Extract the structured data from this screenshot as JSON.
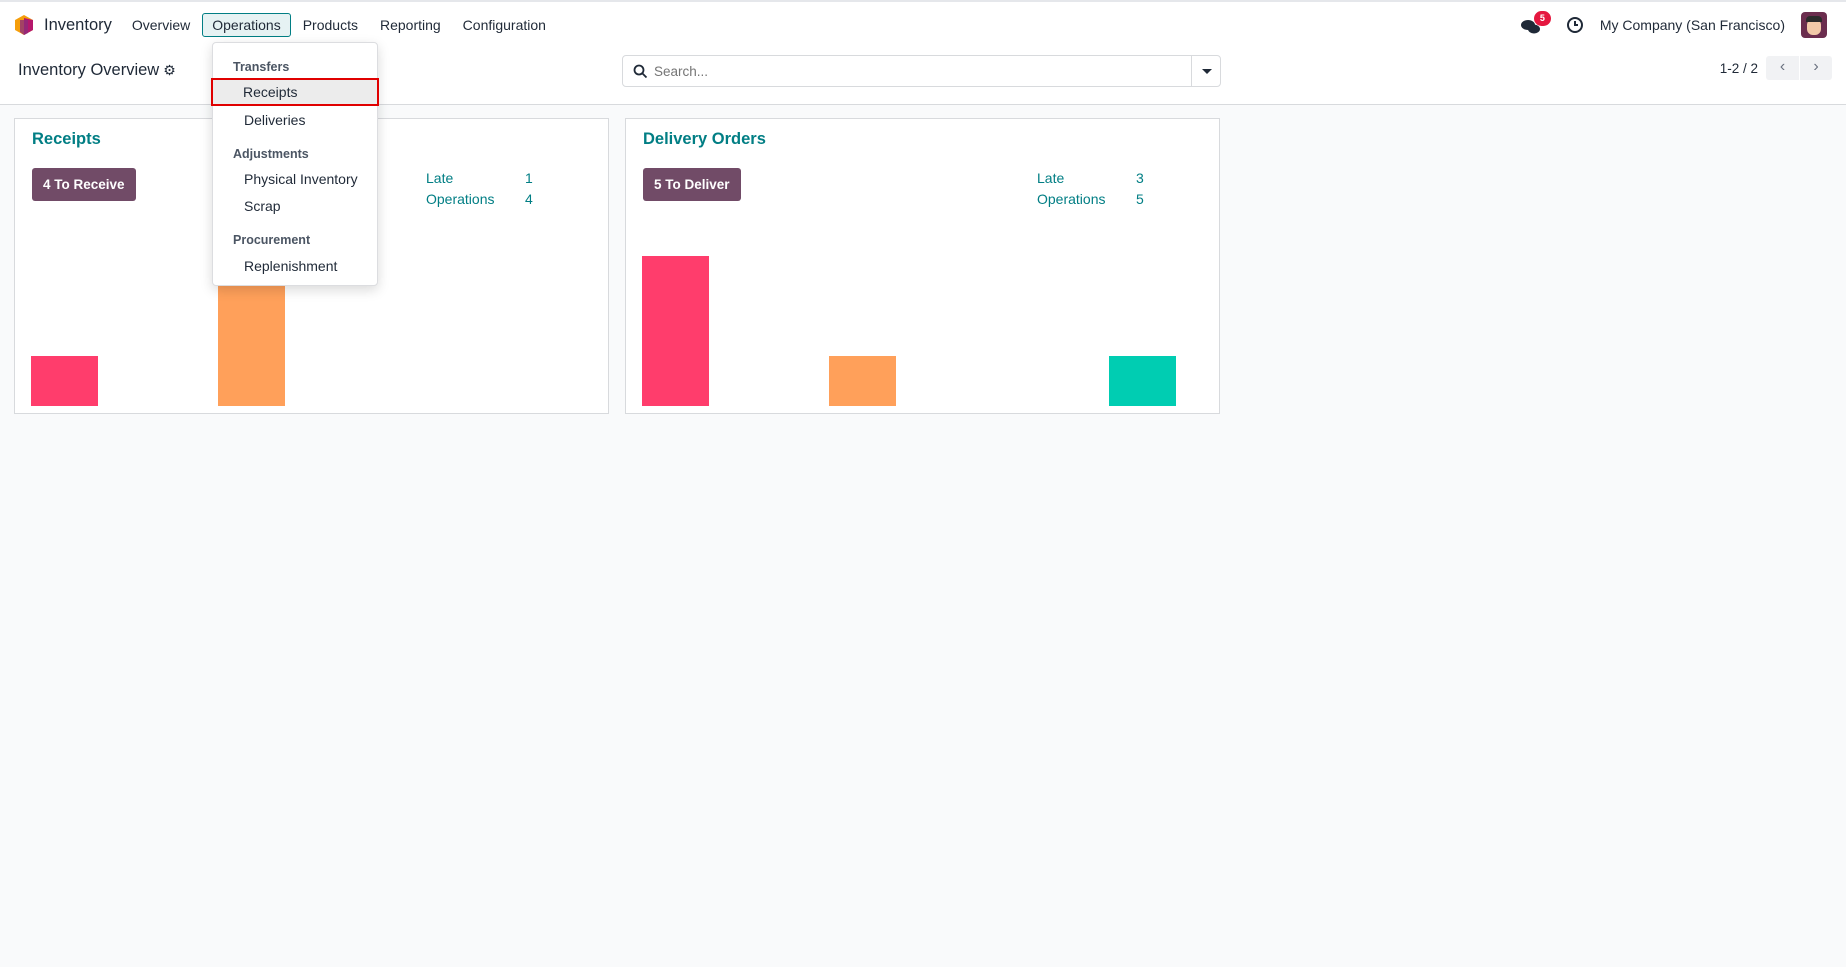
{
  "navbar": {
    "app_name": "Inventory",
    "menus": [
      "Overview",
      "Operations",
      "Products",
      "Reporting",
      "Configuration"
    ],
    "active_menu": "Operations",
    "messages_badge": "5",
    "company": "My Company (San Francisco)"
  },
  "control_panel": {
    "title": "Inventory Overview",
    "search_placeholder": "Search...",
    "pager": "1-2 / 2"
  },
  "operations_menu": {
    "sections": [
      {
        "header": "Transfers",
        "items": [
          "Receipts",
          "Deliveries"
        ]
      },
      {
        "header": "Adjustments",
        "items": [
          "Physical Inventory",
          "Scrap"
        ]
      },
      {
        "header": "Procurement",
        "items": [
          "Replenishment"
        ]
      }
    ],
    "highlighted_item": "Receipts"
  },
  "cards": [
    {
      "title": "Receipts",
      "button": "4 To Receive",
      "late_label": "Late",
      "late_value": "1",
      "ops_label": "Operations",
      "ops_value": "4"
    },
    {
      "title": "Delivery Orders",
      "button": "5 To Deliver",
      "late_label": "Late",
      "late_value": "3",
      "ops_label": "Operations",
      "ops_value": "5"
    }
  ],
  "chart_data": [
    {
      "type": "bar",
      "values": [
        1,
        0,
        3,
        0,
        0,
        0
      ],
      "colors": [
        "#ff3d6c",
        "#ff3d6c",
        "#ffa05a",
        "#ffa05a",
        "#00cdb2",
        "#00cdb2"
      ]
    },
    {
      "type": "bar",
      "values": [
        3,
        0,
        1,
        0,
        0,
        1
      ],
      "colors": [
        "#ff3d6c",
        "#ff3d6c",
        "#ffa05a",
        "#ffa05a",
        "#00cdb2",
        "#00cdb2"
      ]
    }
  ],
  "colors": {
    "primary": "#714b67",
    "accent": "#017e84",
    "highlight_border": "#e00000"
  }
}
